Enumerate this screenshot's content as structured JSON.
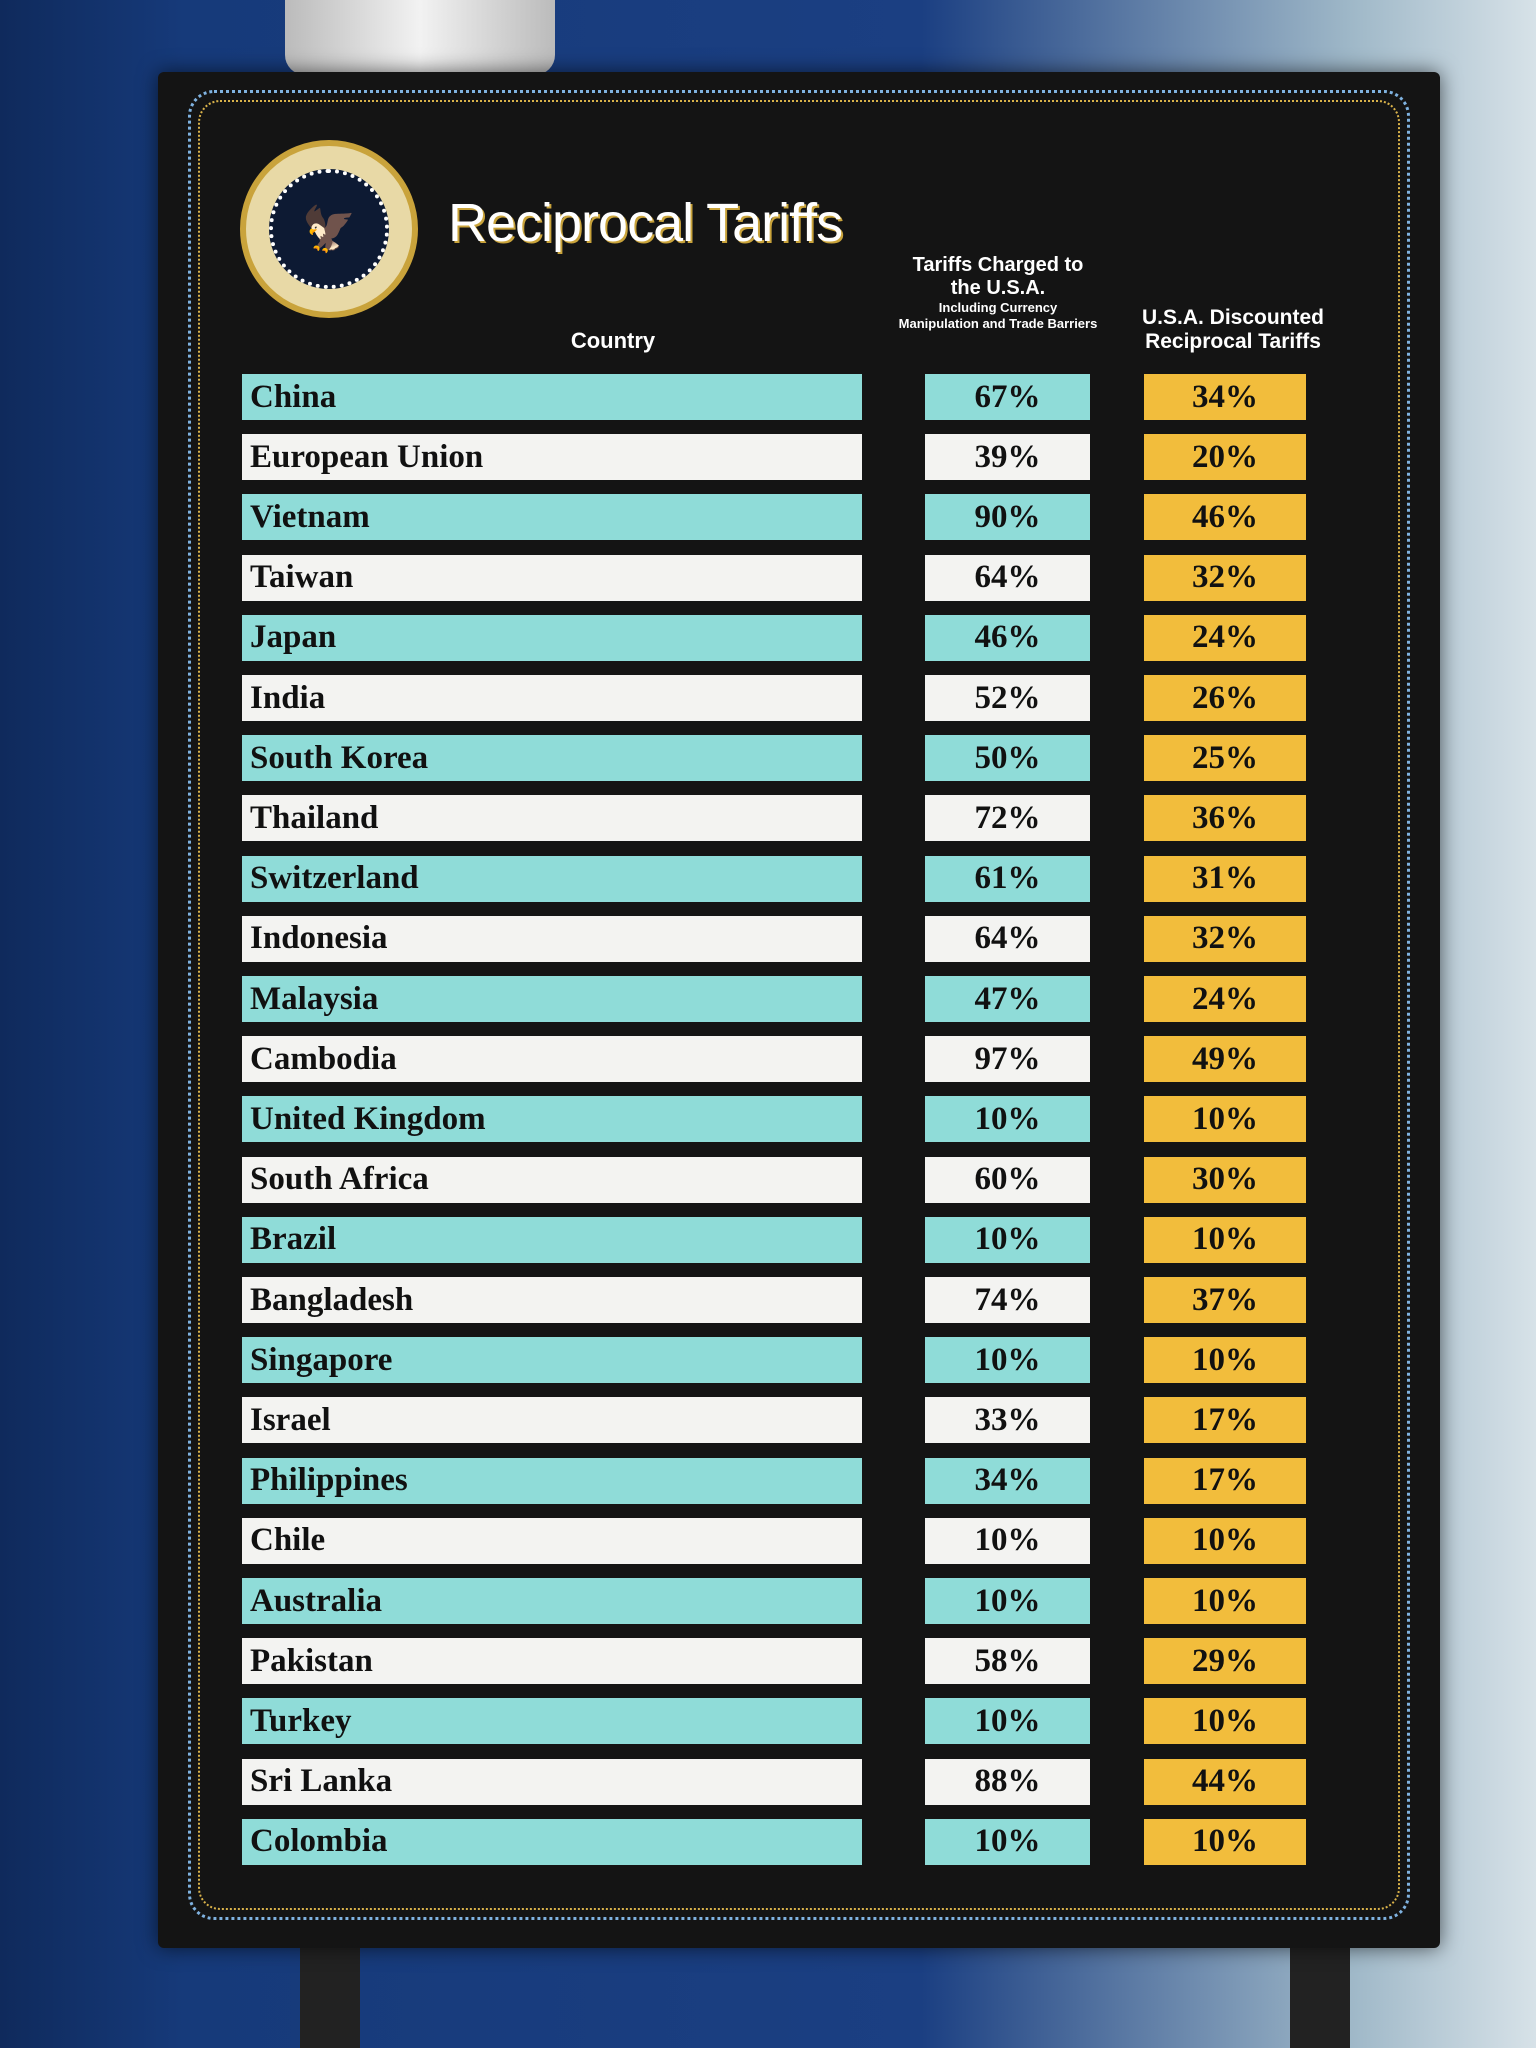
{
  "poster": {
    "seal_text": "SEAL OF THE PRESIDENT OF THE UNITED STATES",
    "title": "Reciprocal Tariffs",
    "headers": {
      "country": "Country",
      "charged": "Tariffs Charged to the U.S.A.",
      "charged_note": "Including Currency Manipulation and Trade Barriers",
      "discounted": "U.S.A. Discounted Reciprocal Tariffs"
    },
    "colors": {
      "teal": "#8fdcd8",
      "white": "#f3f3f1",
      "gold": "#f2bd3c",
      "board": "#141414"
    },
    "rows": [
      {
        "country": "China",
        "charged": "67%",
        "discounted": "34%"
      },
      {
        "country": "European Union",
        "charged": "39%",
        "discounted": "20%"
      },
      {
        "country": "Vietnam",
        "charged": "90%",
        "discounted": "46%"
      },
      {
        "country": "Taiwan",
        "charged": "64%",
        "discounted": "32%"
      },
      {
        "country": "Japan",
        "charged": "46%",
        "discounted": "24%"
      },
      {
        "country": "India",
        "charged": "52%",
        "discounted": "26%"
      },
      {
        "country": "South Korea",
        "charged": "50%",
        "discounted": "25%"
      },
      {
        "country": "Thailand",
        "charged": "72%",
        "discounted": "36%"
      },
      {
        "country": "Switzerland",
        "charged": "61%",
        "discounted": "31%"
      },
      {
        "country": "Indonesia",
        "charged": "64%",
        "discounted": "32%"
      },
      {
        "country": "Malaysia",
        "charged": "47%",
        "discounted": "24%"
      },
      {
        "country": "Cambodia",
        "charged": "97%",
        "discounted": "49%"
      },
      {
        "country": "United Kingdom",
        "charged": "10%",
        "discounted": "10%"
      },
      {
        "country": "South Africa",
        "charged": "60%",
        "discounted": "30%"
      },
      {
        "country": "Brazil",
        "charged": "10%",
        "discounted": "10%"
      },
      {
        "country": "Bangladesh",
        "charged": "74%",
        "discounted": "37%"
      },
      {
        "country": "Singapore",
        "charged": "10%",
        "discounted": "10%"
      },
      {
        "country": "Israel",
        "charged": "33%",
        "discounted": "17%"
      },
      {
        "country": "Philippines",
        "charged": "34%",
        "discounted": "17%"
      },
      {
        "country": "Chile",
        "charged": "10%",
        "discounted": "10%"
      },
      {
        "country": "Australia",
        "charged": "10%",
        "discounted": "10%"
      },
      {
        "country": "Pakistan",
        "charged": "58%",
        "discounted": "29%"
      },
      {
        "country": "Turkey",
        "charged": "10%",
        "discounted": "10%"
      },
      {
        "country": "Sri Lanka",
        "charged": "88%",
        "discounted": "44%"
      },
      {
        "country": "Colombia",
        "charged": "10%",
        "discounted": "10%"
      }
    ]
  }
}
